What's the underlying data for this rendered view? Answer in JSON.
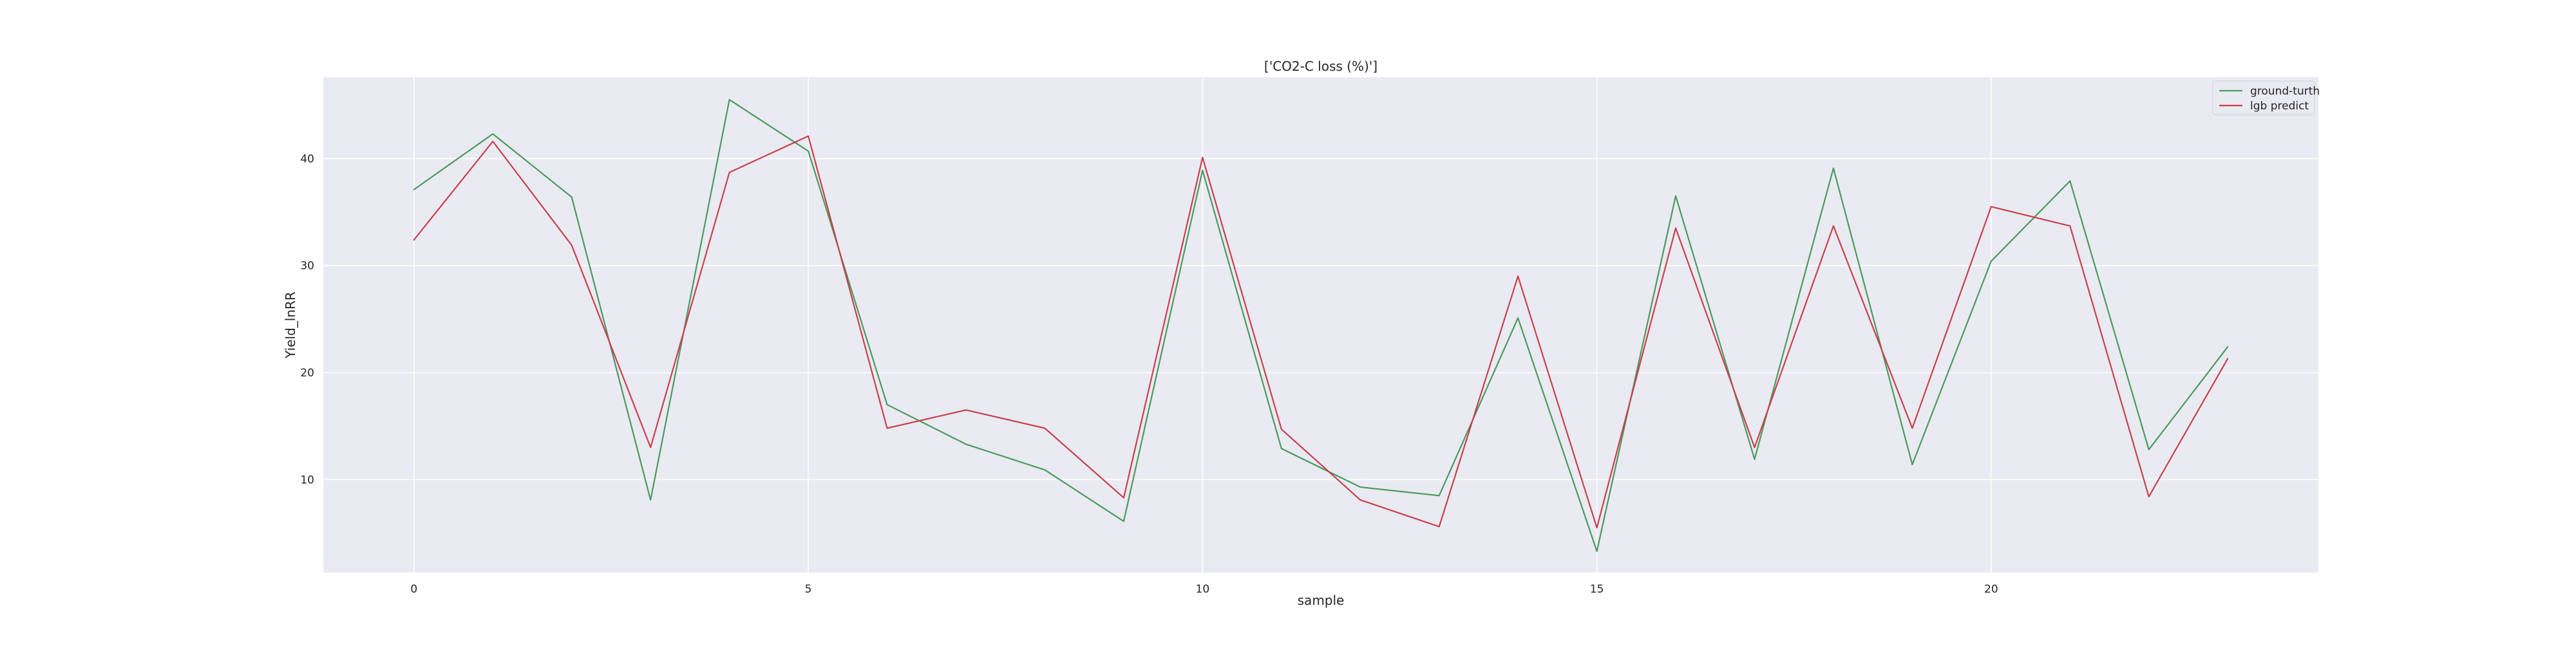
{
  "chart_data": {
    "type": "line",
    "title": "['CO2-C loss (%)']",
    "xlabel": "sample",
    "ylabel": "Yield_lnRR",
    "xlim": [
      -1.15,
      24.15
    ],
    "ylim": [
      1.3,
      47.6
    ],
    "x_ticks": [
      0,
      5,
      10,
      15,
      20
    ],
    "y_ticks": [
      10,
      20,
      30,
      40
    ],
    "grid": true,
    "legend_position": "top-right",
    "x": [
      0,
      1,
      2,
      3,
      4,
      5,
      6,
      7,
      8,
      9,
      10,
      11,
      12,
      13,
      14,
      15,
      16,
      17,
      18,
      19,
      20,
      21,
      22,
      23
    ],
    "series": [
      {
        "name": "ground-turth",
        "color": "#4a9a5e",
        "values": [
          37.1,
          42.3,
          36.4,
          8.1,
          45.5,
          40.7,
          17.0,
          13.3,
          10.9,
          6.1,
          38.9,
          12.9,
          9.3,
          8.5,
          25.1,
          3.3,
          36.5,
          11.9,
          39.1,
          11.4,
          30.4,
          37.9,
          12.8,
          22.4
        ]
      },
      {
        "name": "lgb predict",
        "color": "#c8404e",
        "values": [
          32.4,
          41.6,
          31.9,
          13.0,
          38.7,
          42.1,
          14.8,
          16.5,
          14.8,
          8.3,
          40.1,
          14.7,
          8.1,
          5.6,
          29.0,
          5.5,
          33.5,
          13.0,
          33.7,
          14.8,
          35.5,
          33.7,
          8.4,
          21.3
        ]
      }
    ]
  }
}
